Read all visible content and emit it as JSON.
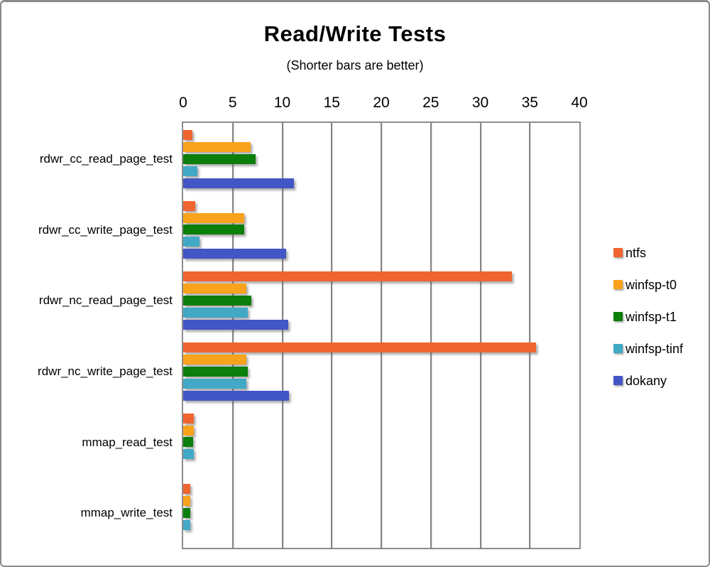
{
  "chart_data": {
    "type": "bar",
    "orientation": "horizontal",
    "title": "Read/Write Tests",
    "subtitle": "(Shorter bars are better)",
    "categories": [
      "rdwr_cc_read_page_test",
      "rdwr_cc_write_page_test",
      "rdwr_nc_read_page_test",
      "rdwr_nc_write_page_test",
      "mmap_read_test",
      "mmap_write_test"
    ],
    "series": [
      {
        "name": "ntfs",
        "color": "#F0642F",
        "values": [
          0.9,
          1.2,
          33.2,
          35.6,
          1.1,
          0.75
        ]
      },
      {
        "name": "winfsp-t0",
        "color": "#F9A21B",
        "values": [
          6.8,
          6.2,
          6.4,
          6.4,
          1.05,
          0.7
        ]
      },
      {
        "name": "winfsp-t1",
        "color": "#0B7E0B",
        "values": [
          7.3,
          6.2,
          6.9,
          6.5,
          1.0,
          0.7
        ]
      },
      {
        "name": "winfsp-tinf",
        "color": "#41A9C6",
        "values": [
          1.4,
          1.65,
          6.5,
          6.4,
          1.05,
          0.7
        ]
      },
      {
        "name": "dokany",
        "color": "#4356C5",
        "values": [
          11.2,
          10.4,
          10.6,
          10.7,
          0,
          0
        ]
      }
    ],
    "xlim": [
      0,
      40
    ],
    "xticks": [
      0,
      5,
      10,
      15,
      20,
      25,
      30,
      35,
      40
    ],
    "grid": "vertical",
    "legend_position": "right",
    "gridline_color": "#848484",
    "plot_border_color": "#8d8d8d",
    "text_color": "#000000"
  }
}
